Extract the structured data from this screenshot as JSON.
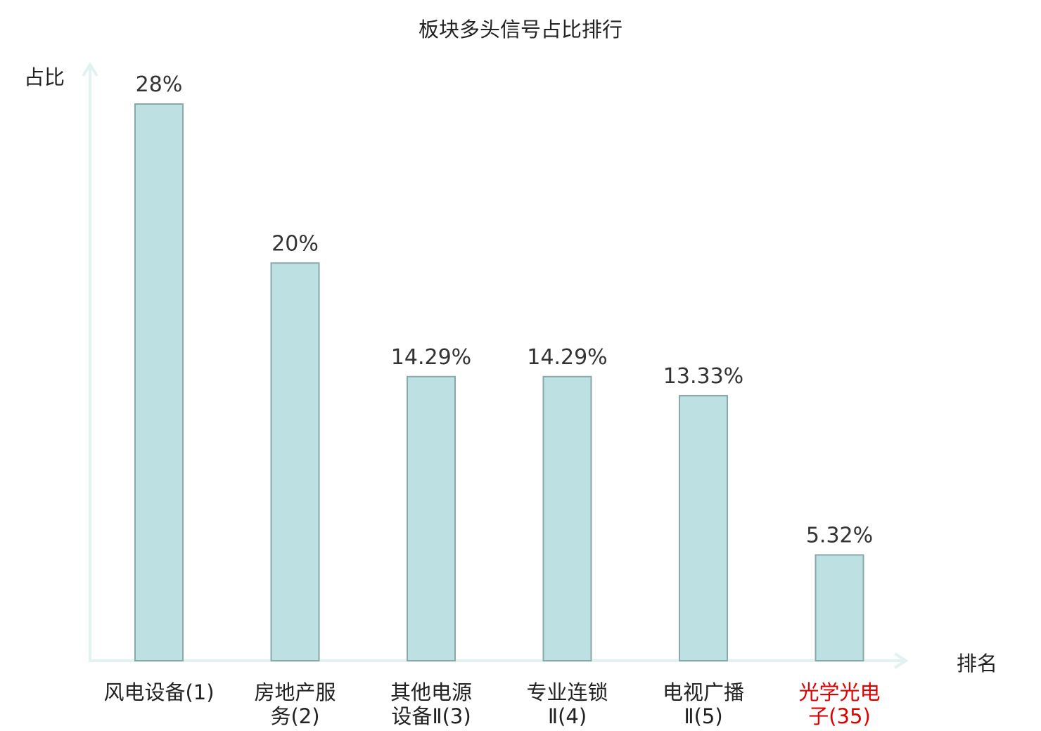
{
  "chart_data": {
    "type": "bar",
    "title": "板块多头信号占比排行",
    "xlabel": "排名",
    "ylabel": "占比",
    "categories": [
      "风电设备(1)",
      "房地产服务(2)",
      "其他电源设备Ⅱ(3)",
      "专业连锁Ⅱ(4)",
      "电视广播Ⅱ(5)",
      "光学光电子(35)"
    ],
    "category_lines": [
      [
        "风电设备(1)"
      ],
      [
        "房地产服",
        "务(2)"
      ],
      [
        "其他电源",
        "设备Ⅱ(3)"
      ],
      [
        "专业连锁",
        "Ⅱ(4)"
      ],
      [
        "电视广播",
        "Ⅱ(5)"
      ],
      [
        "光学光电",
        "子(35)"
      ]
    ],
    "values": [
      28,
      20,
      14.29,
      14.29,
      13.33,
      5.32
    ],
    "value_labels": [
      "28%",
      "20%",
      "14.29%",
      "14.29%",
      "13.33%",
      "5.32%"
    ],
    "highlight_index": 5,
    "ylim": [
      0,
      28
    ],
    "grid": false,
    "legend": "none",
    "colors": {
      "bar_fill": "#bde0e3",
      "bar_stroke": "#88a8aa",
      "axis": "#e2f2f0",
      "highlight_text": "#e00000",
      "normal_text": "#222222"
    }
  }
}
